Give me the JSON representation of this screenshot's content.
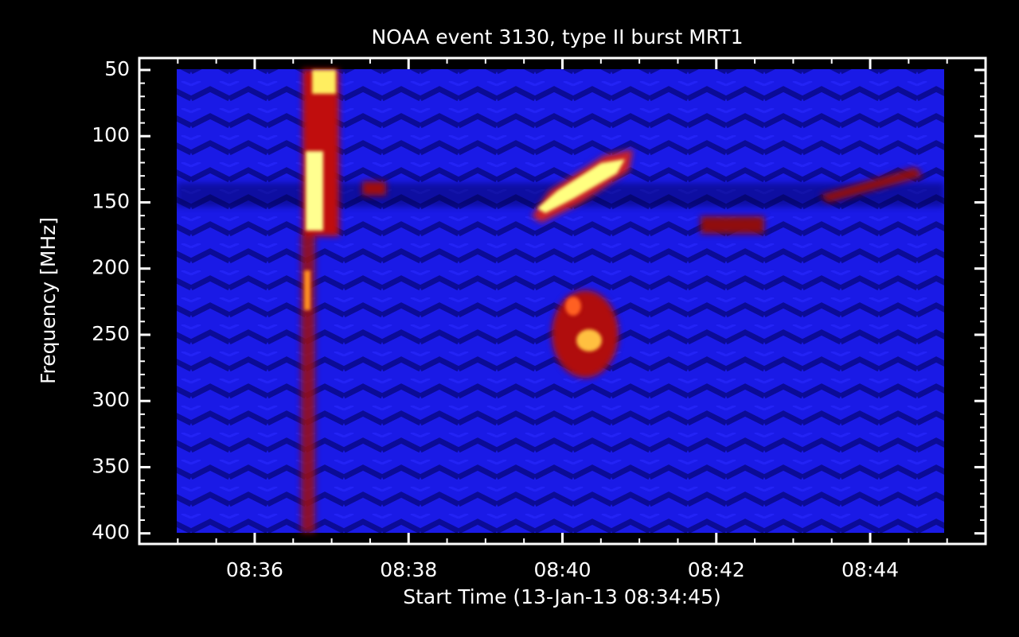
{
  "chart_data": {
    "type": "spectrogram",
    "title": "NOAA event 3130, type II burst MRT1",
    "x_label": "Start Time (13-Jan-13 08:34:45)",
    "y_label": "Frequency [MHz]",
    "xlim": [
      34.5,
      45.5
    ],
    "xticks": [
      {
        "value": 36,
        "label": "08:36"
      },
      {
        "value": 38,
        "label": "08:38"
      },
      {
        "value": 40,
        "label": "08:40"
      },
      {
        "value": 42,
        "label": "08:42"
      },
      {
        "value": 44,
        "label": "08:44"
      }
    ],
    "xminorticks": [
      35,
      35.5,
      36.5,
      37,
      37.5,
      38.5,
      39,
      39.5,
      40.5,
      41,
      41.5,
      42.5,
      43,
      43.5,
      44.5,
      45
    ],
    "ylim": [
      41,
      408
    ],
    "y_inverted": true,
    "yticks": [
      50,
      100,
      150,
      200,
      250,
      300,
      350,
      400
    ],
    "yminorticks": [
      60,
      70,
      80,
      90,
      110,
      120,
      130,
      140,
      160,
      170,
      180,
      190,
      210,
      220,
      230,
      240,
      260,
      270,
      280,
      290,
      310,
      320,
      330,
      340,
      360,
      370,
      380,
      390
    ],
    "color": "#ffffff"
  }
}
